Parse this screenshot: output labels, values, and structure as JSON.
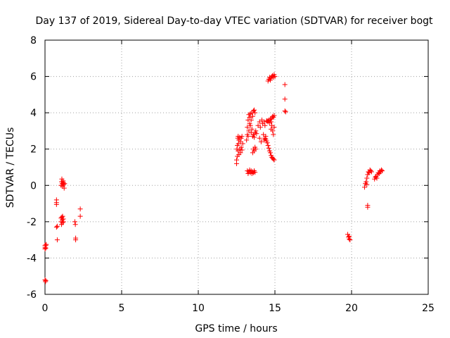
{
  "chart_data": {
    "type": "scatter",
    "title": "Day 137 of 2019, Sidereal Day-to-day VTEC variation (SDTVAR) for receiver bogt",
    "xlabel": "GPS time / hours",
    "ylabel": "SDTVAR / TECUs",
    "xlim": [
      0,
      25
    ],
    "ylim": [
      -6,
      8
    ],
    "xticks": [
      0,
      5,
      10,
      15,
      20,
      25
    ],
    "yticks": [
      -6,
      -4,
      -2,
      0,
      2,
      4,
      6,
      8
    ],
    "xtick_labels": [
      "0",
      "5",
      "10",
      "15",
      "20",
      "25"
    ],
    "ytick_labels": [
      "-6",
      "-4",
      "-2",
      "0",
      "2",
      "4",
      "6",
      "8"
    ],
    "grid": true,
    "marker": "+",
    "color": "#ff0000",
    "series": [
      {
        "name": "SDTVAR",
        "points": [
          [
            0.0,
            -3.3
          ],
          [
            0.0,
            -3.4
          ],
          [
            0.0,
            -3.5
          ],
          [
            0.05,
            -3.3
          ],
          [
            0.05,
            -3.45
          ],
          [
            0.08,
            -3.25
          ],
          [
            0.0,
            -5.2
          ],
          [
            0.03,
            -5.3
          ],
          [
            0.05,
            -5.25
          ],
          [
            0.75,
            -0.8
          ],
          [
            0.75,
            -0.95
          ],
          [
            0.75,
            -1.05
          ],
          [
            0.75,
            -2.3
          ],
          [
            0.8,
            -2.25
          ],
          [
            0.8,
            -3.0
          ],
          [
            1.05,
            -1.8
          ],
          [
            1.05,
            -2.0
          ],
          [
            1.08,
            -2.15
          ],
          [
            1.1,
            -1.75
          ],
          [
            1.12,
            -1.9
          ],
          [
            1.15,
            -2.05
          ],
          [
            1.15,
            -1.7
          ],
          [
            1.2,
            -1.85
          ],
          [
            1.2,
            -2.0
          ],
          [
            1.05,
            0.0
          ],
          [
            1.08,
            0.2
          ],
          [
            1.1,
            0.35
          ],
          [
            1.12,
            0.1
          ],
          [
            1.15,
            -0.05
          ],
          [
            1.18,
            0.25
          ],
          [
            1.2,
            0.15
          ],
          [
            1.22,
            0.05
          ],
          [
            1.25,
            -0.15
          ],
          [
            1.28,
            0.1
          ],
          [
            1.95,
            -2.0
          ],
          [
            1.98,
            -2.15
          ],
          [
            2.0,
            -2.9
          ],
          [
            2.0,
            -3.0
          ],
          [
            2.3,
            -1.3
          ],
          [
            2.3,
            -1.7
          ],
          [
            12.5,
            1.2
          ],
          [
            12.5,
            1.4
          ],
          [
            12.52,
            2.0
          ],
          [
            12.55,
            1.6
          ],
          [
            12.55,
            2.2
          ],
          [
            12.58,
            2.6
          ],
          [
            12.6,
            1.9
          ],
          [
            12.6,
            2.7
          ],
          [
            12.62,
            2.3
          ],
          [
            12.65,
            1.7
          ],
          [
            12.65,
            2.5
          ],
          [
            12.7,
            2.0
          ],
          [
            12.7,
            2.65
          ],
          [
            12.75,
            1.8
          ],
          [
            12.75,
            2.4
          ],
          [
            12.8,
            2.6
          ],
          [
            12.8,
            2.1
          ],
          [
            12.85,
            2.7
          ],
          [
            12.85,
            1.95
          ],
          [
            12.9,
            2.3
          ],
          [
            13.15,
            2.5
          ],
          [
            13.2,
            2.8
          ],
          [
            13.2,
            3.2
          ],
          [
            13.25,
            3.6
          ],
          [
            13.25,
            2.7
          ],
          [
            13.3,
            3.9
          ],
          [
            13.3,
            3.0
          ],
          [
            13.35,
            3.4
          ],
          [
            13.35,
            3.75
          ],
          [
            13.4,
            3.3
          ],
          [
            13.4,
            3.95
          ],
          [
            13.45,
            2.9
          ],
          [
            13.45,
            3.6
          ],
          [
            13.5,
            4.0
          ],
          [
            13.5,
            3.1
          ],
          [
            13.55,
            3.8
          ],
          [
            13.6,
            4.1
          ],
          [
            13.65,
            4.15
          ],
          [
            13.7,
            4.0
          ],
          [
            13.2,
            0.8
          ],
          [
            13.25,
            0.65
          ],
          [
            13.3,
            0.75
          ],
          [
            13.35,
            0.85
          ],
          [
            13.4,
            0.7
          ],
          [
            13.45,
            0.8
          ],
          [
            13.5,
            0.65
          ],
          [
            13.55,
            0.75
          ],
          [
            13.6,
            0.7
          ],
          [
            13.65,
            0.8
          ],
          [
            13.7,
            0.72
          ],
          [
            13.55,
            1.8
          ],
          [
            13.6,
            2.0
          ],
          [
            13.65,
            1.9
          ],
          [
            13.7,
            2.1
          ],
          [
            13.75,
            2.0
          ],
          [
            13.55,
            2.7
          ],
          [
            13.6,
            2.8
          ],
          [
            13.65,
            2.65
          ],
          [
            13.7,
            2.9
          ],
          [
            13.75,
            3.0
          ],
          [
            13.8,
            2.85
          ],
          [
            13.9,
            3.3
          ],
          [
            14.0,
            3.5
          ],
          [
            14.0,
            2.6
          ],
          [
            14.05,
            3.2
          ],
          [
            14.1,
            2.4
          ],
          [
            14.15,
            3.6
          ],
          [
            14.2,
            3.4
          ],
          [
            14.25,
            2.8
          ],
          [
            14.3,
            3.5
          ],
          [
            14.35,
            3.3
          ],
          [
            14.4,
            2.7
          ],
          [
            14.45,
            3.55
          ],
          [
            14.3,
            2.5
          ],
          [
            14.35,
            2.6
          ],
          [
            14.4,
            2.55
          ],
          [
            14.45,
            2.45
          ],
          [
            14.5,
            2.35
          ],
          [
            14.55,
            2.2
          ],
          [
            14.6,
            2.05
          ],
          [
            14.65,
            1.9
          ],
          [
            14.7,
            1.8
          ],
          [
            14.75,
            1.65
          ],
          [
            14.8,
            1.55
          ],
          [
            14.85,
            1.5
          ],
          [
            14.9,
            1.45
          ],
          [
            14.95,
            1.4
          ],
          [
            14.5,
            3.55
          ],
          [
            14.55,
            3.5
          ],
          [
            14.6,
            3.6
          ],
          [
            14.65,
            3.45
          ],
          [
            14.7,
            3.65
          ],
          [
            14.75,
            3.5
          ],
          [
            14.8,
            3.7
          ],
          [
            14.85,
            3.8
          ],
          [
            14.9,
            3.75
          ],
          [
            14.95,
            3.85
          ],
          [
            14.75,
            3.1
          ],
          [
            14.8,
            3.3
          ],
          [
            14.85,
            3.0
          ],
          [
            14.9,
            2.8
          ],
          [
            14.95,
            3.2
          ],
          [
            14.55,
            5.75
          ],
          [
            14.6,
            5.85
          ],
          [
            14.65,
            5.95
          ],
          [
            14.7,
            5.8
          ],
          [
            14.75,
            5.9
          ],
          [
            14.8,
            6.0
          ],
          [
            14.85,
            6.05
          ],
          [
            14.9,
            5.95
          ],
          [
            14.95,
            6.1
          ],
          [
            15.0,
            6.0
          ],
          [
            15.65,
            5.55
          ],
          [
            15.65,
            4.75
          ],
          [
            15.65,
            4.1
          ],
          [
            15.7,
            4.05
          ],
          [
            19.75,
            -2.7
          ],
          [
            19.8,
            -2.85
          ],
          [
            19.85,
            -2.95
          ],
          [
            19.85,
            -2.8
          ],
          [
            19.9,
            -3.0
          ],
          [
            20.85,
            -0.1
          ],
          [
            20.9,
            0.1
          ],
          [
            20.95,
            0.2
          ],
          [
            21.0,
            0.4
          ],
          [
            21.0,
            0.05
          ],
          [
            21.05,
            -1.1
          ],
          [
            21.05,
            -1.2
          ],
          [
            21.05,
            0.6
          ],
          [
            21.1,
            0.75
          ],
          [
            21.15,
            0.7
          ],
          [
            21.2,
            0.85
          ],
          [
            21.25,
            0.8
          ],
          [
            21.3,
            0.75
          ],
          [
            21.5,
            0.35
          ],
          [
            21.55,
            0.45
          ],
          [
            21.6,
            0.5
          ],
          [
            21.65,
            0.4
          ],
          [
            21.7,
            0.6
          ],
          [
            21.75,
            0.7
          ],
          [
            21.8,
            0.65
          ],
          [
            21.85,
            0.8
          ],
          [
            21.9,
            0.75
          ],
          [
            21.95,
            0.85
          ],
          [
            22.0,
            0.8
          ]
        ]
      }
    ]
  }
}
